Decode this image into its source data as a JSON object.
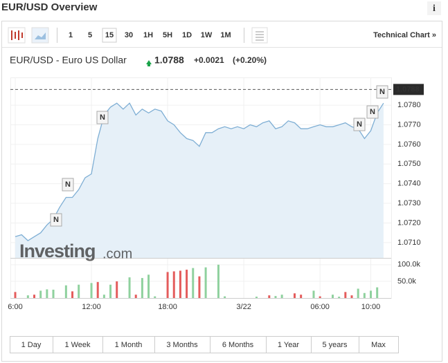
{
  "header": {
    "title": "EUR/USD Overview",
    "info": "i"
  },
  "toolbar": {
    "intervals": [
      "1",
      "5",
      "15",
      "30",
      "1H",
      "5H",
      "1D",
      "1W",
      "1M"
    ],
    "active": "15",
    "link": "Technical Chart »"
  },
  "quote": {
    "name": "EUR/USD - Euro US Dollar",
    "price": "1.0788",
    "change": "+0.0021",
    "change_pct": "(+0.20%)"
  },
  "watermark": {
    "brand": "Investing",
    "suffix": ".com"
  },
  "ranges": [
    "1 Day",
    "1 Week",
    "1 Month",
    "3 Months",
    "6 Months",
    "1 Year",
    "5 years",
    "Max"
  ],
  "chart_data": {
    "type": "line",
    "categories": [
      "6:00",
      null,
      null,
      null,
      null,
      null,
      null,
      null,
      null,
      null,
      null,
      null,
      "12:00",
      null,
      null,
      null,
      null,
      null,
      null,
      null,
      null,
      null,
      null,
      null,
      "18:00",
      null,
      null,
      null,
      null,
      null,
      null,
      null,
      null,
      null,
      null,
      null,
      "3/22",
      null,
      null,
      null,
      null,
      null,
      null,
      null,
      null,
      null,
      null,
      null,
      "06:00",
      null,
      null,
      null,
      null,
      null,
      null,
      null,
      "10:00",
      null,
      null
    ],
    "series": [
      {
        "name": "EUR/USD",
        "color": "#7eaed4",
        "fill": "#e6f0f8",
        "values": [
          1.0713,
          1.0714,
          1.0711,
          1.0713,
          1.0715,
          1.0719,
          1.0722,
          1.0728,
          1.0733,
          1.0733,
          1.0737,
          1.0743,
          1.0745,
          1.0763,
          1.0775,
          1.0779,
          1.0781,
          1.0778,
          1.0781,
          1.0775,
          1.0778,
          1.0776,
          1.0778,
          1.0777,
          1.0772,
          1.077,
          1.0766,
          1.0763,
          1.0762,
          1.0759,
          1.0766,
          1.0766,
          1.0768,
          1.0769,
          1.0768,
          1.0769,
          1.0768,
          1.077,
          1.0769,
          1.0771,
          1.0772,
          1.0768,
          1.0769,
          1.0772,
          1.0771,
          1.0768,
          1.0768,
          1.0769,
          1.077,
          1.0769,
          1.0769,
          1.077,
          1.0771,
          1.0769,
          1.0768,
          1.0763,
          1.0767,
          1.0776,
          1.0781
        ]
      },
      {
        "name": "Volume",
        "axis": "y2",
        "values": [
          18000,
          0,
          8000,
          10000,
          22000,
          26000,
          25000,
          0,
          38000,
          20000,
          40000,
          0,
          45000,
          48000,
          10000,
          40000,
          50000,
          0,
          62000,
          10000,
          60000,
          70000,
          5000,
          0,
          78000,
          80000,
          82000,
          85000,
          90000,
          65000,
          92000,
          0,
          100000,
          5000,
          0,
          0,
          0,
          0,
          4000,
          0,
          8000,
          6000,
          10000,
          0,
          14000,
          10000,
          0,
          22000,
          5000,
          0,
          10000,
          4000,
          18000,
          8000,
          28000,
          15000,
          22000,
          32000,
          0
        ],
        "colors": [
          "#e45c5c",
          "#e45c5c",
          "#8fd19e",
          "#e45c5c",
          "#8fd19e",
          "#8fd19e",
          "#8fd19e",
          "#8fd19e",
          "#8fd19e",
          "#e45c5c",
          "#8fd19e",
          "#8fd19e",
          "#8fd19e",
          "#e45c5c",
          "#8fd19e",
          "#8fd19e",
          "#e45c5c",
          "#8fd19e",
          "#8fd19e",
          "#e45c5c",
          "#8fd19e",
          "#8fd19e",
          "#8fd19e",
          "#8fd19e",
          "#e45c5c",
          "#e45c5c",
          "#e45c5c",
          "#e45c5c",
          "#8fd19e",
          "#e45c5c",
          "#8fd19e",
          "#8fd19e",
          "#8fd19e",
          "#8fd19e",
          "#8fd19e",
          "#8fd19e",
          "#8fd19e",
          "#8fd19e",
          "#8fd19e",
          "#8fd19e",
          "#e45c5c",
          "#8fd19e",
          "#8fd19e",
          "#8fd19e",
          "#e45c5c",
          "#e45c5c",
          "#8fd19e",
          "#8fd19e",
          "#e45c5c",
          "#8fd19e",
          "#8fd19e",
          "#8fd19e",
          "#e45c5c",
          "#e45c5c",
          "#8fd19e",
          "#8fd19e",
          "#8fd19e",
          "#8fd19e",
          "#8fd19e"
        ]
      }
    ],
    "last_value": 1.0788,
    "ylim": [
      1.07022,
      1.07913
    ],
    "yticks": [
      {
        "value": 1.071,
        "label": "1.0710"
      },
      {
        "value": 1.072,
        "label": "1.0720"
      },
      {
        "value": 1.073,
        "label": "1.0730"
      },
      {
        "value": 1.074,
        "label": "1.0740"
      },
      {
        "value": 1.075,
        "label": "1.0750"
      },
      {
        "value": 1.076,
        "label": "1.0760"
      },
      {
        "value": 1.077,
        "label": "1.0770"
      },
      {
        "value": 1.078,
        "label": "1.0780"
      }
    ],
    "y2lim": [
      0,
      110000
    ],
    "y2ticks": [
      {
        "value": 50000,
        "label": "50.0k"
      },
      {
        "value": 100000,
        "label": "100.0k"
      }
    ],
    "annotations": [
      "N",
      "N",
      "N",
      "N",
      "N",
      "N"
    ],
    "grid": true
  }
}
